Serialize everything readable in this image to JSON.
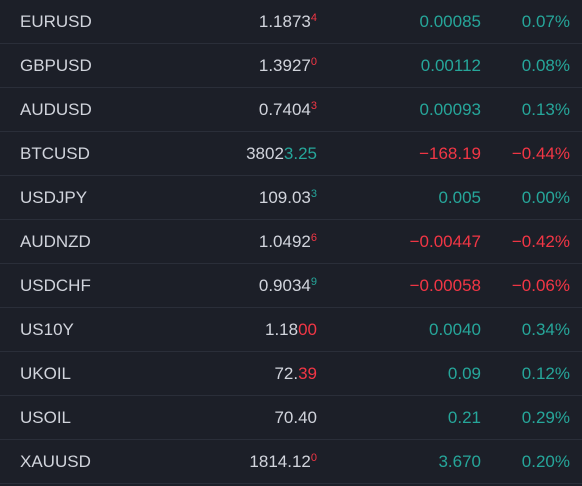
{
  "watchlist": {
    "up_color": "#26a69a",
    "down_color": "#f23645",
    "rows": [
      {
        "symbol": "EURUSD",
        "price": "1.1873",
        "price_tail": "4",
        "tail_dir": "down",
        "tail_sup": true,
        "change": "0.00085",
        "change_pct": "0.07%",
        "dir": "up"
      },
      {
        "symbol": "GBPUSD",
        "price": "1.3927",
        "price_tail": "0",
        "tail_dir": "down",
        "tail_sup": true,
        "change": "0.00112",
        "change_pct": "0.08%",
        "dir": "up"
      },
      {
        "symbol": "AUDUSD",
        "price": "0.7404",
        "price_tail": "3",
        "tail_dir": "down",
        "tail_sup": true,
        "change": "0.00093",
        "change_pct": "0.13%",
        "dir": "up"
      },
      {
        "symbol": "BTCUSD",
        "price": "3802",
        "price_tail": "3.25",
        "tail_dir": "up",
        "tail_sup": false,
        "change": "−168.19",
        "change_pct": "−0.44%",
        "dir": "down"
      },
      {
        "symbol": "USDJPY",
        "price": "109.03",
        "price_tail": "3",
        "tail_dir": "up",
        "tail_sup": true,
        "change": "0.005",
        "change_pct": "0.00%",
        "dir": "up"
      },
      {
        "symbol": "AUDNZD",
        "price": "1.0492",
        "price_tail": "6",
        "tail_dir": "down",
        "tail_sup": true,
        "change": "−0.00447",
        "change_pct": "−0.42%",
        "dir": "down"
      },
      {
        "symbol": "USDCHF",
        "price": "0.9034",
        "price_tail": "9",
        "tail_dir": "up",
        "tail_sup": true,
        "change": "−0.00058",
        "change_pct": "−0.06%",
        "dir": "down"
      },
      {
        "symbol": "US10Y",
        "price": "1.18",
        "price_tail": "00",
        "tail_dir": "down",
        "tail_sup": false,
        "change": "0.0040",
        "change_pct": "0.34%",
        "dir": "up"
      },
      {
        "symbol": "UKOIL",
        "price": "72.",
        "price_tail": "39",
        "tail_dir": "down",
        "tail_sup": false,
        "change": "0.09",
        "change_pct": "0.12%",
        "dir": "up"
      },
      {
        "symbol": "USOIL",
        "price": "70.40",
        "change": "0.21",
        "change_pct": "0.29%",
        "dir": "up"
      },
      {
        "symbol": "XAUUSD",
        "price": "1814.12",
        "price_tail": "0",
        "tail_dir": "down",
        "tail_sup": true,
        "change": "3.670",
        "change_pct": "0.20%",
        "dir": "up"
      }
    ]
  }
}
